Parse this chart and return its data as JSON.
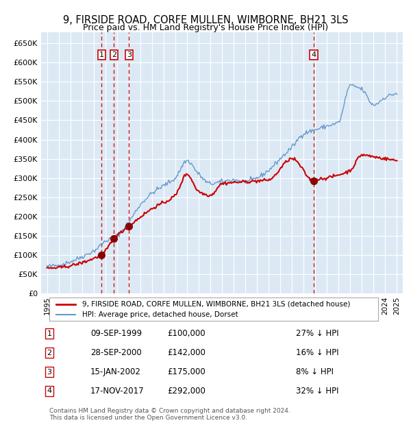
{
  "title": "9, FIRSIDE ROAD, CORFE MULLEN, WIMBORNE, BH21 3LS",
  "subtitle": "Price paid vs. HM Land Registry's House Price Index (HPI)",
  "title_fontsize": 11,
  "subtitle_fontsize": 9.5,
  "background_color": "#dce9f5",
  "plot_bg_color": "#dce9f5",
  "red_line_color": "#cc0000",
  "blue_line_color": "#6699cc",
  "grid_color": "#ffffff",
  "dashed_color": "#cc0000",
  "ylim": [
    0,
    680000
  ],
  "yticks": [
    0,
    50000,
    100000,
    150000,
    200000,
    250000,
    300000,
    350000,
    400000,
    450000,
    500000,
    550000,
    600000,
    650000
  ],
  "ytick_labels": [
    "£0",
    "£50K",
    "£100K",
    "£150K",
    "£200K",
    "£250K",
    "£300K",
    "£350K",
    "£400K",
    "£450K",
    "£500K",
    "£550K",
    "£600K",
    "£650K"
  ],
  "xlim_start": 1994.5,
  "xlim_end": 2025.5,
  "xticks": [
    1995,
    1996,
    1997,
    1998,
    1999,
    2000,
    2001,
    2002,
    2003,
    2004,
    2005,
    2006,
    2007,
    2008,
    2009,
    2010,
    2011,
    2012,
    2013,
    2014,
    2015,
    2016,
    2017,
    2018,
    2019,
    2020,
    2021,
    2022,
    2023,
    2024,
    2025
  ],
  "transactions": [
    {
      "num": 1,
      "date": "09-SEP-1999",
      "year": 1999.69,
      "price": 100000,
      "pct": "27%",
      "dir": "↓"
    },
    {
      "num": 2,
      "date": "28-SEP-2000",
      "year": 2000.75,
      "price": 142000,
      "pct": "16%",
      "dir": "↓"
    },
    {
      "num": 3,
      "date": "15-JAN-2002",
      "year": 2002.04,
      "price": 175000,
      "pct": "8%",
      "dir": "↓"
    },
    {
      "num": 4,
      "date": "17-NOV-2017",
      "year": 2017.88,
      "price": 292000,
      "pct": "32%",
      "dir": "↓"
    }
  ],
  "legend_line1": "9, FIRSIDE ROAD, CORFE MULLEN, WIMBORNE, BH21 3LS (detached house)",
  "legend_line2": "HPI: Average price, detached house, Dorset",
  "footer1": "Contains HM Land Registry data © Crown copyright and database right 2024.",
  "footer2": "This data is licensed under the Open Government Licence v3.0."
}
